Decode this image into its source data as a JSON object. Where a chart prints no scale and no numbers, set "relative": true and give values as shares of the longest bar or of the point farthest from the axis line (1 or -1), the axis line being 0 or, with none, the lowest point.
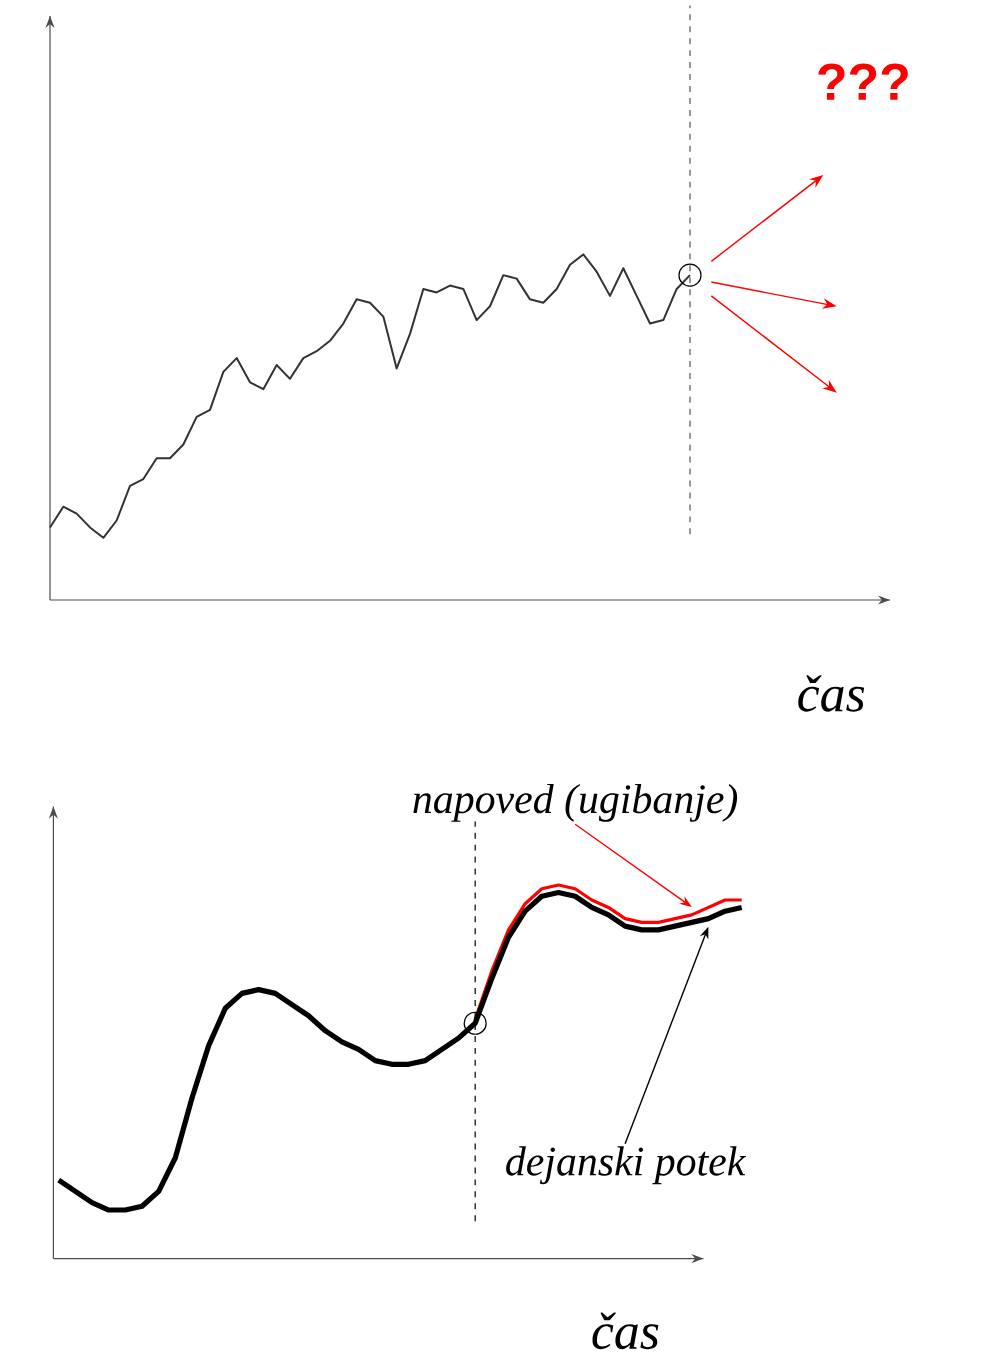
{
  "chart_data": [
    {
      "type": "line",
      "relative": true,
      "xlabel": "čas",
      "annotations": [
        "???"
      ],
      "categories": [
        null,
        null,
        null,
        null,
        null,
        null,
        null,
        null,
        null,
        null,
        null,
        null,
        null,
        null,
        null,
        null,
        null,
        null,
        null,
        null,
        null,
        null,
        null,
        null,
        null,
        null,
        null,
        null,
        null,
        null,
        null,
        null,
        null,
        null,
        null,
        null,
        null,
        null,
        null,
        null,
        null,
        null,
        null,
        null,
        null,
        null,
        null,
        null,
        null
      ],
      "series": [
        {
          "color": "#333333",
          "values": [
            0.21,
            0.27,
            0.25,
            0.21,
            0.18,
            0.23,
            0.33,
            0.35,
            0.41,
            0.41,
            0.45,
            0.53,
            0.55,
            0.66,
            0.7,
            0.63,
            0.61,
            0.68,
            0.64,
            0.7,
            0.72,
            0.75,
            0.8,
            0.87,
            0.86,
            0.82,
            0.67,
            0.77,
            0.9,
            0.89,
            0.91,
            0.9,
            0.81,
            0.85,
            0.94,
            0.93,
            0.87,
            0.86,
            0.9,
            0.97,
            1.0,
            0.95,
            0.88,
            0.96,
            0.88,
            0.8,
            0.81,
            0.9,
            0.94
          ]
        }
      ]
    },
    {
      "type": "line",
      "relative": true,
      "xlabel": "čas",
      "categories": [
        null,
        null,
        null,
        null,
        null,
        null,
        null,
        null,
        null,
        null,
        null,
        null,
        null,
        null,
        null,
        null,
        null,
        null,
        null,
        null,
        null,
        null,
        null,
        null,
        null,
        null,
        null,
        null,
        null,
        null,
        null,
        null,
        null,
        null,
        null,
        null,
        null,
        null,
        null,
        null,
        null,
        null
      ],
      "series": [
        {
          "name": "napoved (ugibanje)",
          "color": "#ff0000",
          "values": [
            null,
            null,
            null,
            null,
            null,
            null,
            null,
            null,
            null,
            null,
            null,
            null,
            null,
            null,
            null,
            null,
            null,
            null,
            null,
            null,
            null,
            null,
            null,
            null,
            null,
            0.64,
            0.77,
            0.88,
            0.95,
            0.99,
            1.0,
            0.99,
            0.96,
            0.94,
            0.91,
            0.9,
            0.9,
            0.91,
            0.92,
            0.94,
            0.96,
            0.96
          ]
        },
        {
          "name": "dejanski potek",
          "color": "#000000",
          "values": [
            0.21,
            0.18,
            0.15,
            0.13,
            0.13,
            0.14,
            0.18,
            0.27,
            0.43,
            0.57,
            0.67,
            0.71,
            0.72,
            0.71,
            0.68,
            0.65,
            0.61,
            0.58,
            0.56,
            0.53,
            0.52,
            0.52,
            0.53,
            0.56,
            0.59,
            0.63,
            0.75,
            0.86,
            0.93,
            0.97,
            0.98,
            0.97,
            0.94,
            0.92,
            0.89,
            0.88,
            0.88,
            0.89,
            0.9,
            0.91,
            0.93,
            0.94
          ]
        }
      ]
    }
  ]
}
